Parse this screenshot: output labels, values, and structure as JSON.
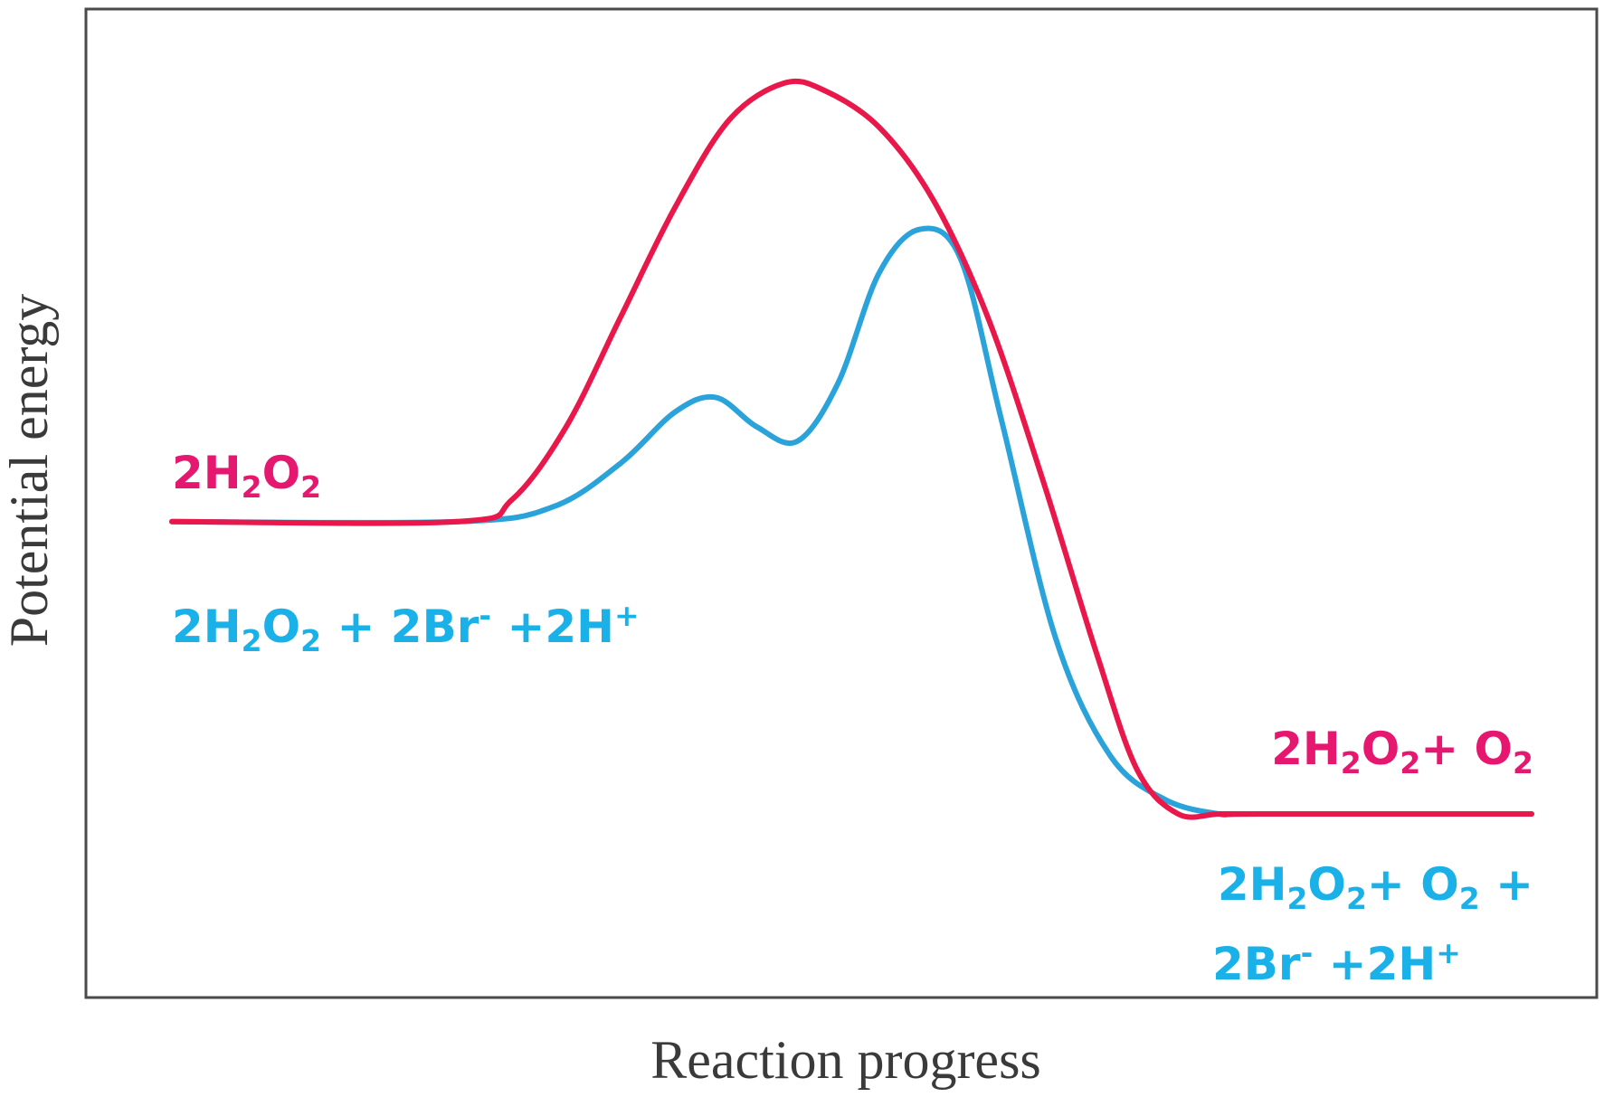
{
  "chart_data": {
    "type": "line",
    "title": "",
    "xlabel": "Reaction progress",
    "ylabel": "Potential energy",
    "grid": false,
    "legend": "none",
    "series": [
      {
        "key": "uncatalyzed",
        "color": "#e8184a",
        "x": [
          0.0,
          0.21,
          0.25,
          0.29,
          0.33,
          0.37,
          0.41,
          0.45,
          0.48,
          0.52,
          0.56,
          0.6,
          0.64,
          0.68,
          0.71,
          0.74,
          0.77,
          0.8,
          1.0
        ],
        "y": [
          0.4,
          0.4,
          0.43,
          0.53,
          0.68,
          0.83,
          0.95,
          1.0,
          0.99,
          0.94,
          0.84,
          0.68,
          0.46,
          0.22,
          0.06,
          0.0,
          0.0,
          0.0,
          0.0
        ]
      },
      {
        "key": "catalyzed",
        "color": "#29a3d9",
        "x": [
          0.0,
          0.21,
          0.28,
          0.33,
          0.37,
          0.4,
          0.43,
          0.46,
          0.49,
          0.52,
          0.55,
          0.58,
          0.61,
          0.65,
          0.69,
          0.73,
          0.77,
          0.8,
          1.0
        ],
        "y": [
          0.4,
          0.4,
          0.42,
          0.48,
          0.55,
          0.57,
          0.53,
          0.51,
          0.59,
          0.74,
          0.8,
          0.76,
          0.54,
          0.24,
          0.08,
          0.02,
          0.0,
          0.0,
          0.0
        ]
      }
    ],
    "annotations": {
      "reactant_uncatalyzed": [
        "2H",
        "2",
        "O",
        "2"
      ],
      "reactant_catalyzed": [
        "2H",
        "2",
        "O",
        "2",
        " + 2Br",
        "-",
        " +2H",
        "+"
      ],
      "product_uncatalyzed": [
        "2H",
        "2",
        "O",
        "2",
        "+ O",
        "2"
      ],
      "product_catalyzed_line1": [
        "2H",
        "2",
        "O",
        "2",
        "+ O",
        "2",
        " +"
      ],
      "product_catalyzed_line2": [
        "2Br",
        "-",
        " +2H",
        "+"
      ]
    },
    "colors": {
      "uncatalyzed_text": "#e6176f",
      "catalyzed_text": "#1ab0e8"
    }
  }
}
